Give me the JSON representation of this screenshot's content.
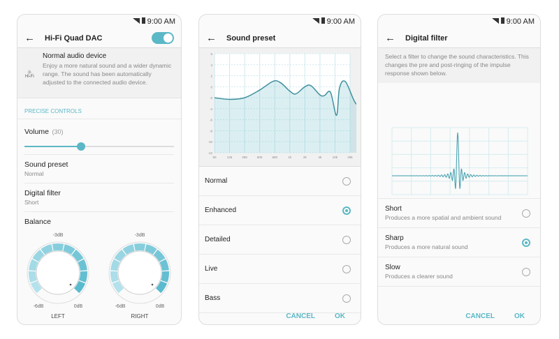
{
  "status": {
    "time": "9:00 AM"
  },
  "accent": "#5bb8c6",
  "dac": {
    "title": "Hi-Fi Quad DAC",
    "toggle_on": true,
    "info_title": "Normal audio device",
    "info_desc": "Enjoy a more natural sound and a wider dynamic range. The sound has been automatically adjusted to the connected audio device.",
    "hifi_icon_label": "Hi-Fi",
    "section": "PRECISE CONTROLS",
    "volume_label": "Volume",
    "volume_value": "(30)",
    "volume_fraction": 0.38,
    "sound_preset_label": "Sound preset",
    "sound_preset_value": "Normal",
    "digital_filter_label": "Digital filter",
    "digital_filter_value": "Short",
    "balance_label": "Balance",
    "knobs": [
      {
        "label": "LEFT",
        "top": "-3dB",
        "min": "-6dB",
        "max": "0dB"
      },
      {
        "label": "RIGHT",
        "top": "-3dB",
        "min": "-6dB",
        "max": "0dB"
      }
    ]
  },
  "preset": {
    "title": "Sound preset",
    "options": [
      {
        "label": "Normal",
        "selected": false
      },
      {
        "label": "Enhanced",
        "selected": true
      },
      {
        "label": "Detailed",
        "selected": false
      },
      {
        "label": "Live",
        "selected": false
      },
      {
        "label": "Bass",
        "selected": false
      }
    ],
    "cancel": "CANCEL",
    "ok": "OK"
  },
  "chart_data": {
    "type": "area",
    "x_ticks": [
      "50",
      "125",
      "250",
      "500",
      "800",
      "1k",
      "2k",
      "4k",
      "10k",
      "20k"
    ],
    "y_ticks": [
      "6",
      "4",
      "2",
      "0",
      "-2",
      "-4",
      "-6",
      "-8",
      "-10",
      "-12"
    ],
    "ylim": [
      -12,
      6
    ],
    "grid": true,
    "points": [
      [
        0,
        -2
      ],
      [
        1,
        -2.3
      ],
      [
        2,
        -2
      ],
      [
        3,
        -0.6
      ],
      [
        3.9,
        1
      ],
      [
        4.4,
        0.7
      ],
      [
        5,
        -0.8
      ],
      [
        5.4,
        -1.3
      ],
      [
        6,
        0
      ],
      [
        6.4,
        0.2
      ],
      [
        7,
        -1.5
      ],
      [
        7.3,
        -1.6
      ],
      [
        7.7,
        -1
      ],
      [
        8.1,
        -5.2
      ],
      [
        8.3,
        -0.2
      ],
      [
        8.7,
        0.9
      ],
      [
        9.4,
        -3.1
      ],
      [
        9.9,
        -1.9
      ]
    ]
  },
  "filter": {
    "title": "Digital filter",
    "desc": "Select a filter to change the sound characteristics. This changes the pre and post-ringing of the impulse response shown below.",
    "options": [
      {
        "label": "Short",
        "desc": "Produces a more spatial and ambient sound",
        "selected": false
      },
      {
        "label": "Sharp",
        "desc": "Produces a more natural sound",
        "selected": true
      },
      {
        "label": "Slow",
        "desc": "Produces a clearer sound",
        "selected": false
      }
    ],
    "cancel": "CANCEL",
    "ok": "OK"
  }
}
